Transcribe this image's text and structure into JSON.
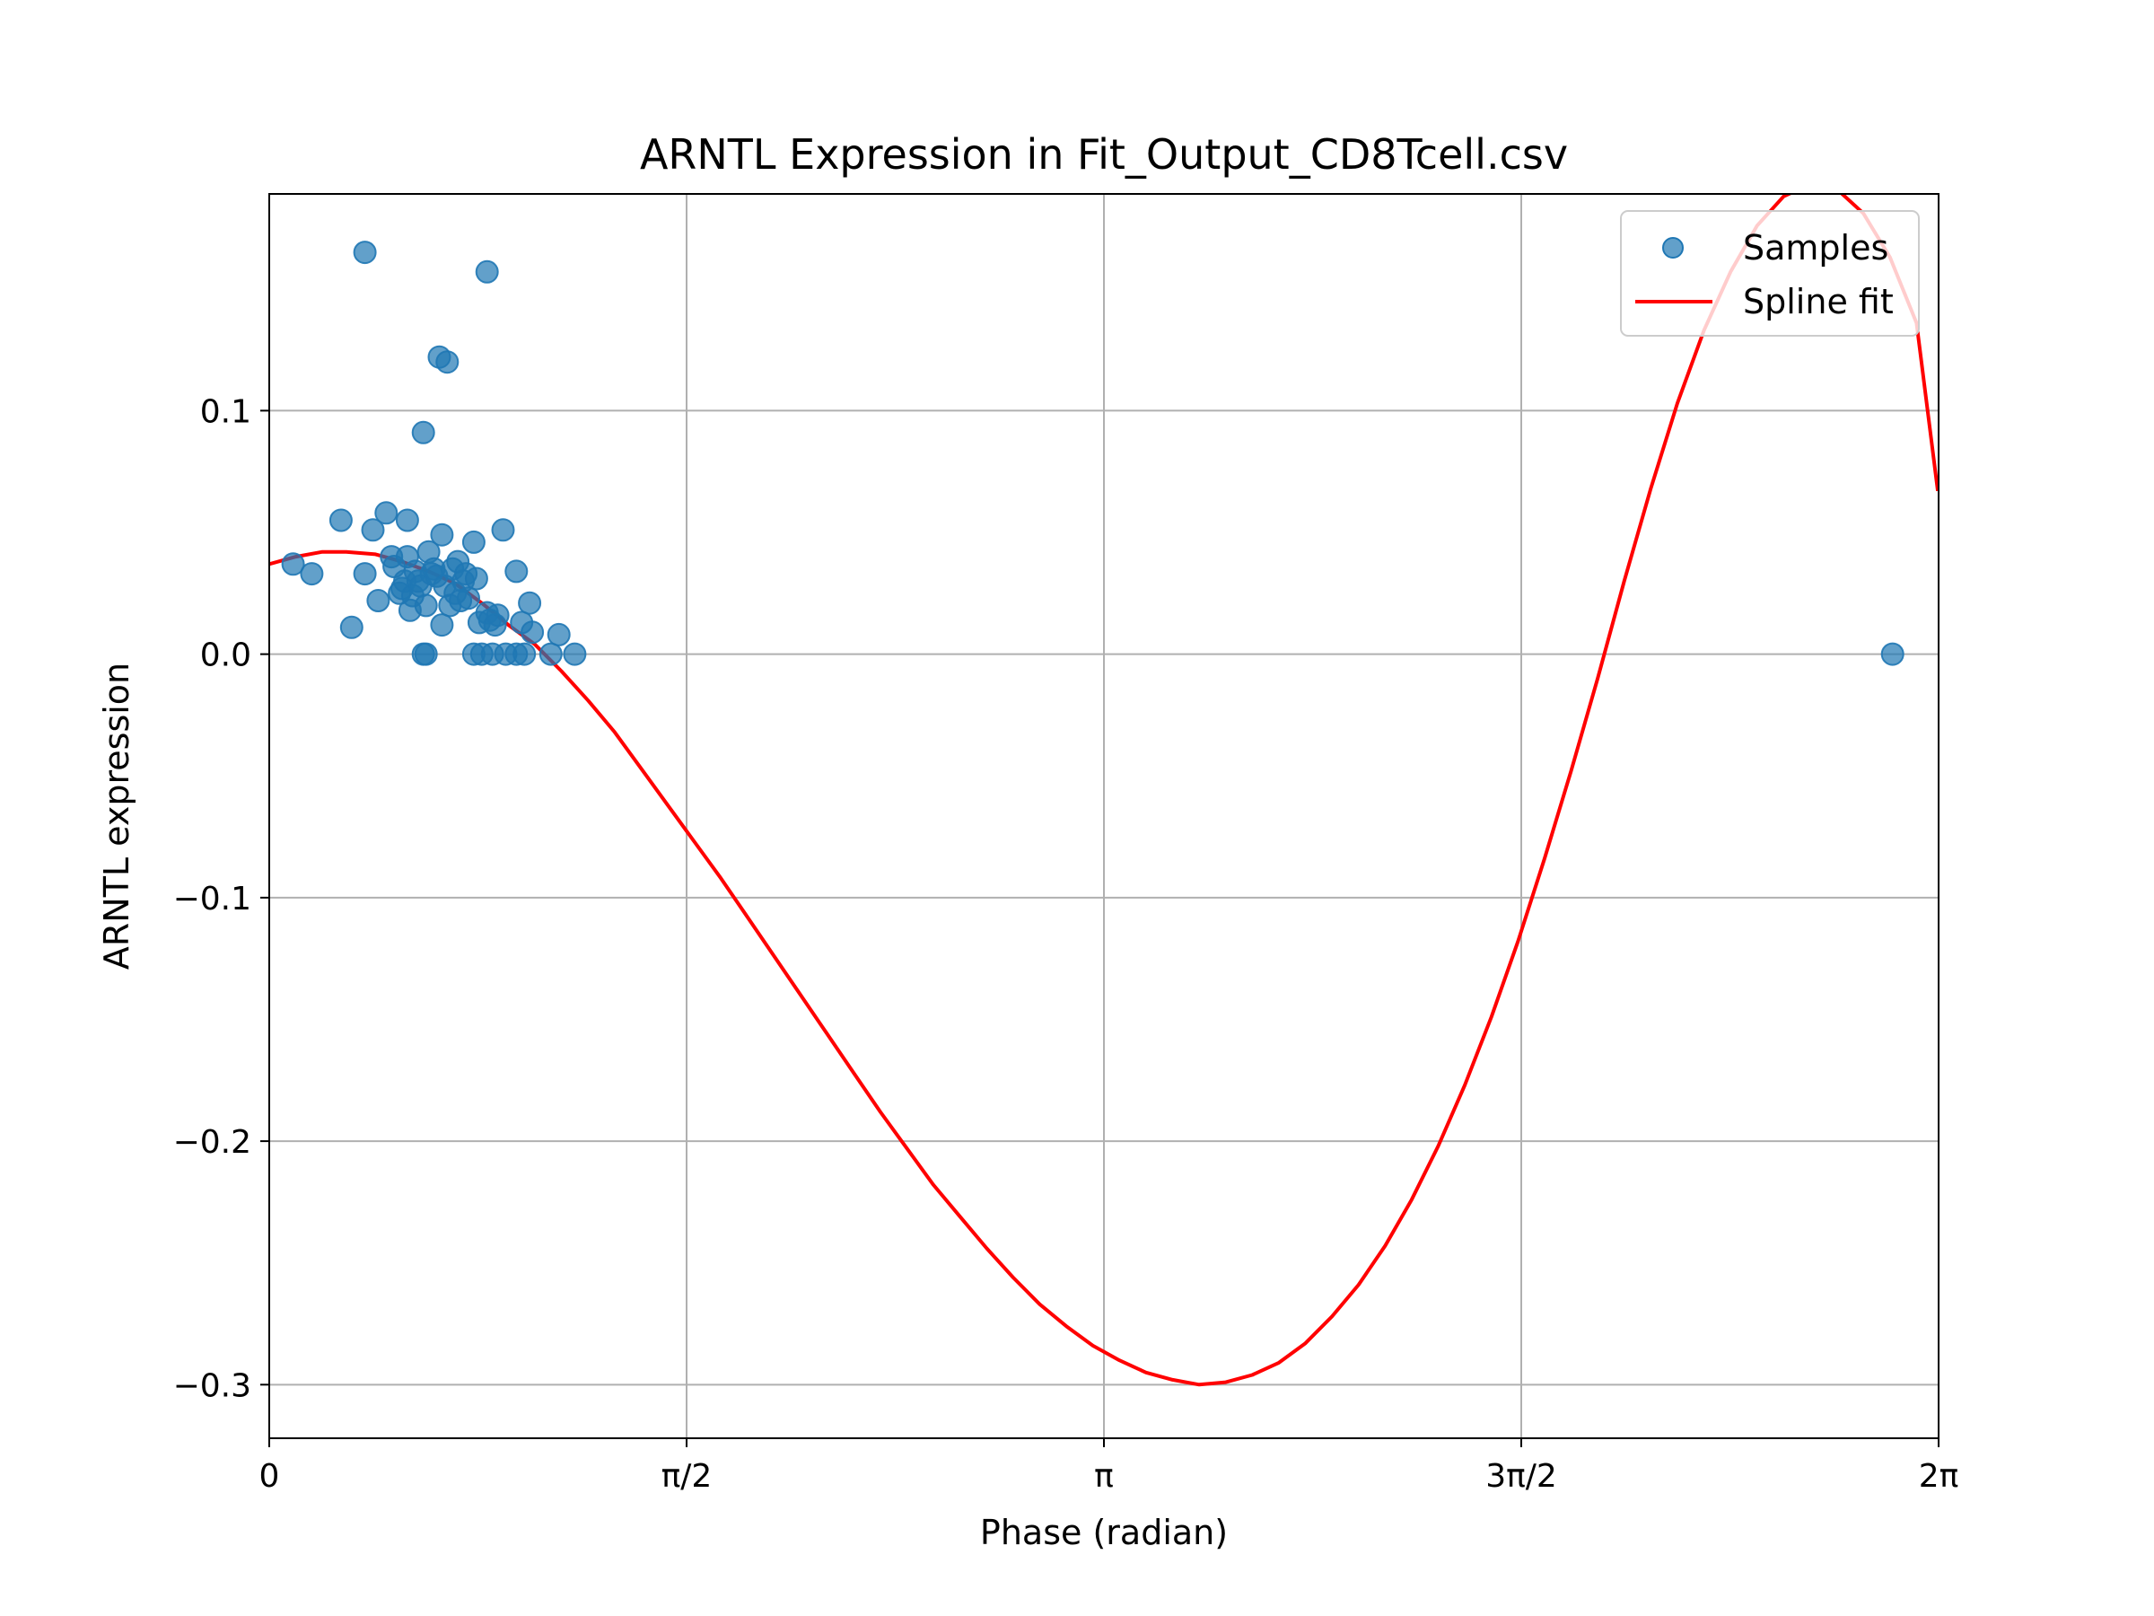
{
  "chart_data": {
    "type": "scatter",
    "title": "ARNTL Expression in Fit_Output_CD8Tcell.csv",
    "xlabel": "Phase (radian)",
    "ylabel": "ARNTL expression",
    "xlim": [
      0,
      6.283185
    ],
    "ylim": [
      -0.322,
      0.189
    ],
    "grid": true,
    "legend_position": "top-right",
    "x_ticks": [
      {
        "value": 0,
        "label": "0"
      },
      {
        "value": 1.570796,
        "label": "π/2"
      },
      {
        "value": 3.141593,
        "label": "π"
      },
      {
        "value": 4.712389,
        "label": "3π/2"
      },
      {
        "value": 6.283185,
        "label": "2π"
      }
    ],
    "y_ticks": [
      {
        "value": 0.1,
        "label": "0.1"
      },
      {
        "value": 0.0,
        "label": "0.0"
      },
      {
        "value": -0.1,
        "label": "−0.1"
      },
      {
        "value": -0.2,
        "label": "−0.2"
      },
      {
        "value": -0.3,
        "label": "−0.3"
      }
    ],
    "series": [
      {
        "name": "Samples",
        "kind": "scatter",
        "color": "#1f77b4",
        "points": [
          [
            0.09,
            0.037
          ],
          [
            0.16,
            0.033
          ],
          [
            0.27,
            0.055
          ],
          [
            0.31,
            0.011
          ],
          [
            0.36,
            0.165
          ],
          [
            0.36,
            0.033
          ],
          [
            0.39,
            0.051
          ],
          [
            0.41,
            0.022
          ],
          [
            0.44,
            0.058
          ],
          [
            0.46,
            0.04
          ],
          [
            0.47,
            0.036
          ],
          [
            0.49,
            0.025
          ],
          [
            0.5,
            0.027
          ],
          [
            0.51,
            0.03
          ],
          [
            0.52,
            0.055
          ],
          [
            0.52,
            0.04
          ],
          [
            0.53,
            0.018
          ],
          [
            0.54,
            0.024
          ],
          [
            0.55,
            0.034
          ],
          [
            0.56,
            0.03
          ],
          [
            0.57,
            0.028
          ],
          [
            0.58,
            0.091
          ],
          [
            0.58,
            0.0
          ],
          [
            0.59,
            0.0
          ],
          [
            0.59,
            0.02
          ],
          [
            0.6,
            0.042
          ],
          [
            0.61,
            0.033
          ],
          [
            0.62,
            0.035
          ],
          [
            0.63,
            0.032
          ],
          [
            0.64,
            0.122
          ],
          [
            0.65,
            0.049
          ],
          [
            0.65,
            0.012
          ],
          [
            0.66,
            0.028
          ],
          [
            0.67,
            0.12
          ],
          [
            0.68,
            0.02
          ],
          [
            0.69,
            0.035
          ],
          [
            0.7,
            0.025
          ],
          [
            0.71,
            0.038
          ],
          [
            0.72,
            0.022
          ],
          [
            0.73,
            0.03
          ],
          [
            0.74,
            0.033
          ],
          [
            0.75,
            0.023
          ],
          [
            0.77,
            0.046
          ],
          [
            0.77,
            0.0
          ],
          [
            0.78,
            0.031
          ],
          [
            0.79,
            0.013
          ],
          [
            0.8,
            0.0
          ],
          [
            0.82,
            0.157
          ],
          [
            0.82,
            0.017
          ],
          [
            0.83,
            0.014
          ],
          [
            0.84,
            0.0
          ],
          [
            0.85,
            0.012
          ],
          [
            0.86,
            0.016
          ],
          [
            0.88,
            0.051
          ],
          [
            0.89,
            0.0
          ],
          [
            0.93,
            0.034
          ],
          [
            0.93,
            0.0
          ],
          [
            0.95,
            0.013
          ],
          [
            0.96,
            0.0
          ],
          [
            0.98,
            0.021
          ],
          [
            0.99,
            0.009
          ],
          [
            1.06,
            0.0
          ],
          [
            1.09,
            0.008
          ],
          [
            1.15,
            0.0
          ],
          [
            6.11,
            0.0
          ]
        ]
      },
      {
        "name": "Spline fit",
        "kind": "line",
        "color": "#ff0000",
        "points": [
          [
            0.0,
            0.037
          ],
          [
            0.1,
            0.04
          ],
          [
            0.2,
            0.042
          ],
          [
            0.29,
            0.042
          ],
          [
            0.4,
            0.041
          ],
          [
            0.5,
            0.038
          ],
          [
            0.6,
            0.034
          ],
          [
            0.7,
            0.029
          ],
          [
            0.8,
            0.021
          ],
          [
            0.9,
            0.012
          ],
          [
            1.0,
            0.004
          ],
          [
            1.1,
            -0.007
          ],
          [
            1.2,
            -0.019
          ],
          [
            1.3,
            -0.032
          ],
          [
            1.4,
            -0.047
          ],
          [
            1.5,
            -0.062
          ],
          [
            1.6,
            -0.077
          ],
          [
            1.7,
            -0.092
          ],
          [
            1.8,
            -0.108
          ],
          [
            1.9,
            -0.124
          ],
          [
            2.0,
            -0.14
          ],
          [
            2.1,
            -0.156
          ],
          [
            2.2,
            -0.172
          ],
          [
            2.3,
            -0.188
          ],
          [
            2.4,
            -0.203
          ],
          [
            2.5,
            -0.218
          ],
          [
            2.6,
            -0.231
          ],
          [
            2.7,
            -0.244
          ],
          [
            2.8,
            -0.256
          ],
          [
            2.9,
            -0.267
          ],
          [
            3.0,
            -0.276
          ],
          [
            3.1,
            -0.284
          ],
          [
            3.2,
            -0.29
          ],
          [
            3.3,
            -0.295
          ],
          [
            3.4,
            -0.298
          ],
          [
            3.5,
            -0.3
          ],
          [
            3.6,
            -0.299
          ],
          [
            3.7,
            -0.296
          ],
          [
            3.8,
            -0.291
          ],
          [
            3.9,
            -0.283
          ],
          [
            4.0,
            -0.272
          ],
          [
            4.1,
            -0.259
          ],
          [
            4.2,
            -0.243
          ],
          [
            4.3,
            -0.224
          ],
          [
            4.4,
            -0.202
          ],
          [
            4.5,
            -0.177
          ],
          [
            4.6,
            -0.149
          ],
          [
            4.7,
            -0.118
          ],
          [
            4.8,
            -0.084
          ],
          [
            4.9,
            -0.048
          ],
          [
            5.0,
            -0.01
          ],
          [
            5.1,
            0.03
          ],
          [
            5.2,
            0.068
          ],
          [
            5.3,
            0.103
          ],
          [
            5.4,
            0.133
          ],
          [
            5.5,
            0.157
          ],
          [
            5.6,
            0.176
          ],
          [
            5.7,
            0.188
          ],
          [
            5.8,
            0.193
          ],
          [
            5.9,
            0.191
          ],
          [
            6.0,
            0.181
          ],
          [
            6.1,
            0.163
          ],
          [
            6.2,
            0.136
          ],
          [
            6.28,
            0.067
          ]
        ]
      }
    ]
  }
}
